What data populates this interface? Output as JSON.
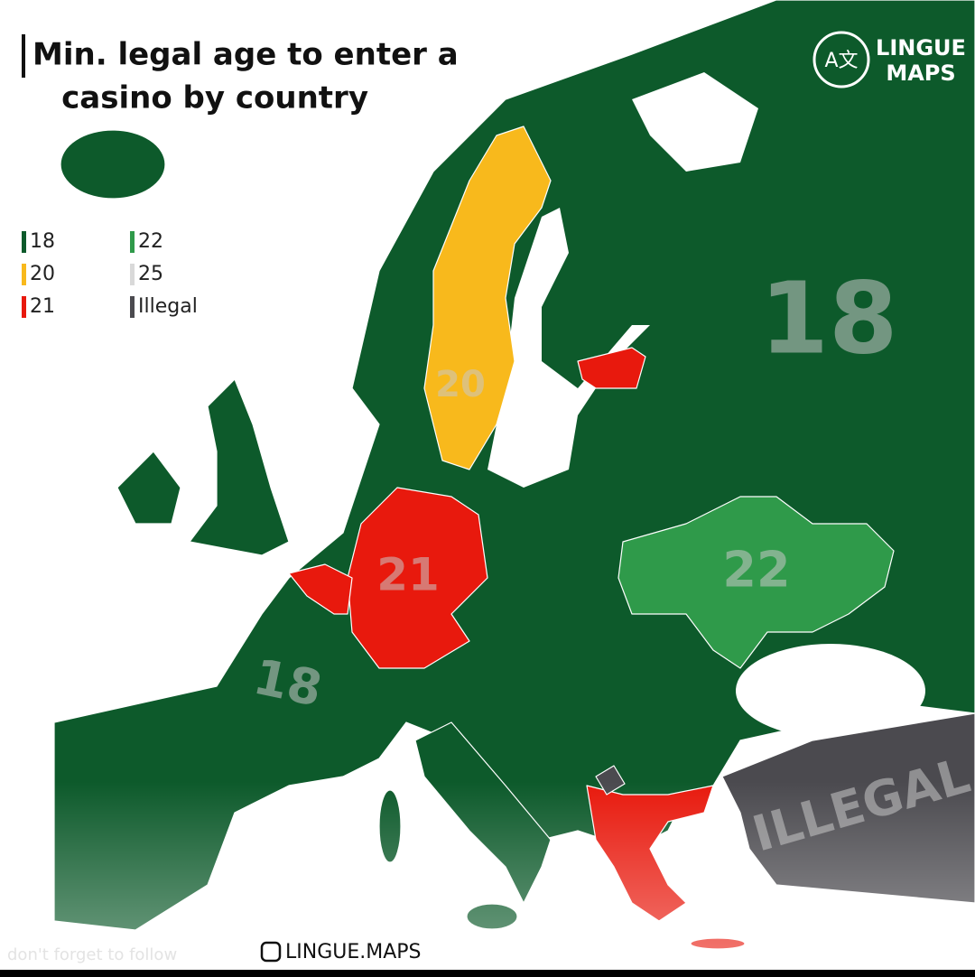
{
  "header": {
    "title_lines": [
      "Min. legal age to enter a",
      "casino by country"
    ]
  },
  "logo": {
    "icon": "A文",
    "lines": [
      "LINGUE",
      "MAPS"
    ]
  },
  "legend": [
    {
      "label": "18",
      "color": "#0d5a2b"
    },
    {
      "label": "20",
      "color": "#f8b91c"
    },
    {
      "label": "21",
      "color": "#e8190d"
    },
    {
      "label": "22",
      "color": "#2f9a4a"
    },
    {
      "label": "25",
      "color": "#d9d9d9"
    },
    {
      "label": "Illegal",
      "color": "#4b4a4f"
    }
  ],
  "map_labels": [
    "18",
    "20",
    "21",
    "22",
    "18",
    "ILLEGAL"
  ],
  "footer": {
    "handle": "LINGUE.MAPS",
    "note": "don't forget to follow"
  }
}
